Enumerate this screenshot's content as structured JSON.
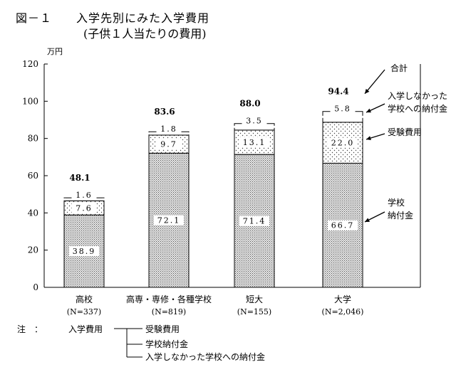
{
  "chart_data": {
    "type": "bar",
    "stacked": true,
    "title": "図－１　　入学先別にみた入学費用",
    "subtitle": "(子供１人当たりの費用)",
    "ylabel": "万円",
    "ylim": [
      0,
      120
    ],
    "yticks": [
      "0",
      "20",
      "40",
      "60",
      "80",
      "100",
      "120"
    ],
    "categories": [
      {
        "name": "高校",
        "n": "(N=337)"
      },
      {
        "name": "高専・専修・各種学校",
        "n": "(N=819)"
      },
      {
        "name": "短大",
        "n": "(N=155)"
      },
      {
        "name": "大学",
        "n": "(N=2,046)"
      }
    ],
    "series": [
      {
        "name": "学校納付金",
        "values": [
          38.9,
          72.1,
          71.4,
          66.7
        ],
        "labels": [
          "38.9",
          "72.1",
          "71.4",
          "66.7"
        ]
      },
      {
        "name": "受験費用",
        "values": [
          7.6,
          9.7,
          13.1,
          22.0
        ],
        "labels": [
          "7.6",
          "9.7",
          "13.1",
          "22.0"
        ]
      },
      {
        "name": "入学しなかった学校への納付金",
        "values": [
          1.6,
          1.8,
          3.5,
          5.8
        ],
        "labels": [
          "1.6",
          "1.8",
          "3.5",
          "5.8"
        ]
      }
    ],
    "totals": [
      "48.1",
      "83.6",
      "88.0",
      "94.4"
    ],
    "annotations": {
      "total": "合計",
      "unenrolled_line1": "入学しなかった",
      "unenrolled_line2": "学校への納付金",
      "exam": "受験費用",
      "tuition_line1": "学校",
      "tuition_line2": "納付金"
    },
    "note": {
      "label": "注　：",
      "parent": "入学費用",
      "children": [
        "受験費用",
        "学校納付金",
        "入学しなかった学校への納付金"
      ]
    }
  }
}
